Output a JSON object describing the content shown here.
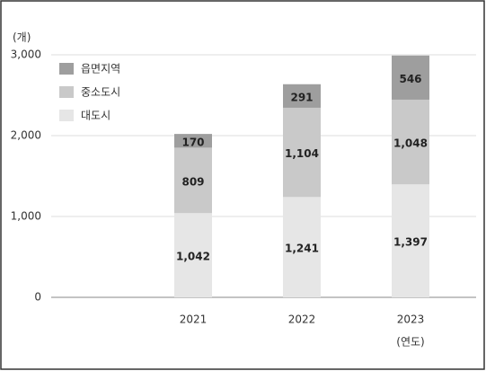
{
  "chart_data": {
    "type": "bar",
    "stacked": true,
    "y_label": "(개)",
    "x_label": "(연도)",
    "categories": [
      "2021",
      "2022",
      "2023"
    ],
    "series": [
      {
        "name": "대도시",
        "color": "#e6e6e6",
        "values": [
          1042,
          1241,
          1397
        ],
        "value_labels": [
          "1,042",
          "1,241",
          "1,397"
        ]
      },
      {
        "name": "중소도시",
        "color": "#c9c9c9",
        "values": [
          809,
          1104,
          1048
        ],
        "value_labels": [
          "809",
          "1,104",
          "1,048"
        ]
      },
      {
        "name": "읍면지역",
        "color": "#9e9e9e",
        "values": [
          170,
          291,
          546
        ],
        "value_labels": [
          "170",
          "291",
          "546"
        ]
      }
    ],
    "ylim": [
      0,
      3000
    ],
    "yticks": [
      0,
      {
        "value": 1000,
        "label": "1,000"
      },
      {
        "value": 2000,
        "label": "2,000"
      },
      {
        "value": 3000,
        "label": "3,000"
      }
    ],
    "grid": true
  }
}
